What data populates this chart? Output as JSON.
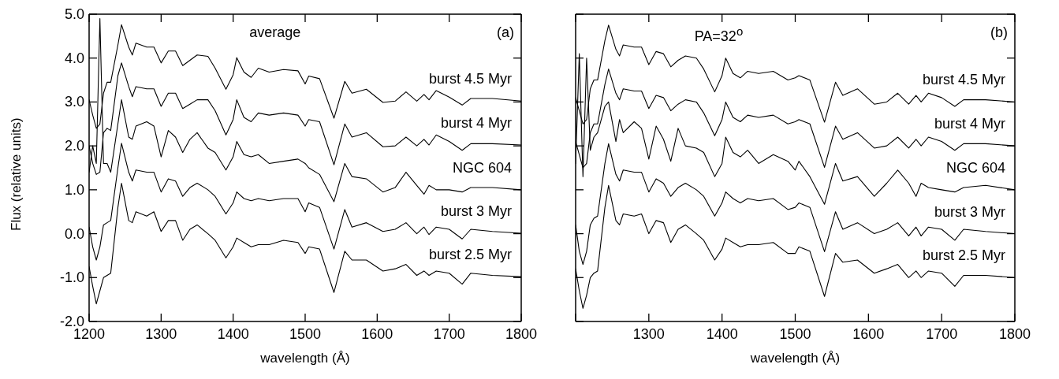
{
  "chart_data": [
    {
      "type": "line",
      "xlabel": "wavelength (Å)",
      "ylabel": "Flux (relative units)",
      "annotations": [
        "average",
        "(a)"
      ],
      "marker": "none",
      "legend": "right",
      "x": [
        1200,
        1205,
        1210,
        1215,
        1220,
        1225,
        1230,
        1240,
        1245,
        1255,
        1260,
        1265,
        1280,
        1290,
        1300,
        1310,
        1320,
        1330,
        1340,
        1350,
        1365,
        1375,
        1390,
        1400,
        1405,
        1415,
        1425,
        1435,
        1450,
        1470,
        1490,
        1500,
        1505,
        1520,
        1540,
        1555,
        1565,
        1585,
        1608,
        1625,
        1640,
        1655,
        1665,
        1672,
        1682,
        1700,
        1718,
        1730,
        1760,
        1800
      ],
      "xlim": [
        1200,
        1800
      ],
      "xticks": [
        1200,
        1300,
        1400,
        1500,
        1600,
        1700,
        1800
      ],
      "ylim": [
        -2,
        5
      ],
      "yticks": [
        {
          "value": -2,
          "label": "-2.0"
        },
        {
          "value": -1,
          "label": "-1.0"
        },
        {
          "value": 0,
          "label": "0.0"
        },
        {
          "value": 1,
          "label": "1.0"
        },
        {
          "value": 2,
          "label": "2.0"
        },
        {
          "value": 3,
          "label": "3.0"
        },
        {
          "value": 4,
          "label": "4.0"
        },
        {
          "value": 5,
          "label": "5.0"
        }
      ],
      "series": [
        {
          "name": "burst 4.5 Myr",
          "color": "#000000",
          "values": [
            3.05,
            2.7,
            2.4,
            2.5,
            3.2,
            3.45,
            3.45,
            4.3,
            4.76,
            4.25,
            4.07,
            4.34,
            4.25,
            4.25,
            3.89,
            4.16,
            4.16,
            3.83,
            3.95,
            4.07,
            4.04,
            3.77,
            3.29,
            3.62,
            4.01,
            3.68,
            3.56,
            3.77,
            3.68,
            3.74,
            3.71,
            3.41,
            3.59,
            3.53,
            2.63,
            3.47,
            3.2,
            3.29,
            2.99,
            3.02,
            3.23,
            3.02,
            3.17,
            3.05,
            3.26,
            3.11,
            2.93,
            3.08,
            3.08,
            3.02
          ]
        },
        {
          "name": "burst 4 Myr",
          "color": "#000000",
          "values": [
            2.0,
            1.6,
            1.35,
            1.4,
            2.3,
            2.4,
            2.35,
            3.6,
            3.89,
            3.35,
            3.12,
            3.35,
            3.3,
            3.3,
            2.9,
            3.2,
            3.2,
            2.85,
            2.95,
            3.05,
            3.05,
            2.8,
            2.25,
            2.6,
            3.05,
            2.65,
            2.55,
            2.75,
            2.7,
            2.75,
            2.7,
            2.45,
            2.6,
            2.55,
            1.57,
            2.5,
            2.2,
            2.3,
            1.98,
            2.0,
            2.2,
            2.0,
            2.15,
            2.02,
            2.25,
            2.1,
            1.9,
            2.05,
            2.05,
            2.02
          ]
        },
        {
          "name": "NGC 604",
          "color": "#000000",
          "values": [
            1.4,
            2.0,
            1.6,
            4.9,
            1.6,
            1.6,
            1.4,
            2.5,
            3.05,
            2.2,
            2.15,
            2.45,
            2.55,
            2.45,
            1.75,
            2.35,
            2.2,
            1.85,
            2.15,
            2.3,
            1.95,
            1.85,
            1.45,
            1.75,
            2.1,
            1.8,
            1.75,
            1.8,
            1.6,
            1.65,
            1.7,
            1.6,
            1.5,
            1.35,
            0.73,
            1.6,
            1.3,
            1.25,
            0.95,
            1.05,
            1.4,
            1.1,
            0.9,
            1.1,
            1.0,
            1.0,
            0.95,
            1.05,
            1.05,
            1.0
          ]
        },
        {
          "name": "burst 3 Myr",
          "color": "#000000",
          "values": [
            0.15,
            -0.3,
            -0.6,
            -0.3,
            0.2,
            0.25,
            0.3,
            1.5,
            2.06,
            1.4,
            1.2,
            1.45,
            1.4,
            1.4,
            0.95,
            1.25,
            1.2,
            0.85,
            1.05,
            1.15,
            1.0,
            0.85,
            0.45,
            0.7,
            0.95,
            0.8,
            0.75,
            0.8,
            0.75,
            0.8,
            0.8,
            0.5,
            0.7,
            0.6,
            -0.35,
            0.55,
            0.15,
            0.25,
            0.05,
            0.1,
            0.25,
            0.0,
            0.15,
            -0.02,
            0.15,
            0.1,
            -0.12,
            0.1,
            0.05,
            0.01
          ]
        },
        {
          "name": "burst 2.5 Myr",
          "color": "#000000",
          "values": [
            -0.75,
            -1.2,
            -1.6,
            -1.3,
            -1.0,
            -0.95,
            -0.9,
            0.6,
            1.15,
            0.3,
            0.25,
            0.5,
            0.4,
            0.5,
            0.05,
            0.3,
            0.3,
            -0.15,
            0.1,
            0.2,
            0.0,
            -0.15,
            -0.55,
            -0.3,
            -0.1,
            -0.2,
            -0.3,
            -0.25,
            -0.25,
            -0.15,
            -0.2,
            -0.45,
            -0.3,
            -0.35,
            -1.34,
            -0.4,
            -0.6,
            -0.6,
            -0.85,
            -0.8,
            -0.7,
            -0.95,
            -0.85,
            -0.95,
            -0.85,
            -0.9,
            -1.15,
            -0.9,
            -0.95,
            -0.98
          ]
        }
      ]
    },
    {
      "type": "line",
      "xlabel": "wavelength (Å)",
      "annotations": [
        "PA=32$^{o}$",
        "(b)"
      ],
      "marker": "none",
      "tick_labels": "x",
      "legend": "right",
      "x": [
        1200,
        1205,
        1210,
        1215,
        1220,
        1225,
        1230,
        1240,
        1245,
        1255,
        1260,
        1265,
        1280,
        1290,
        1300,
        1310,
        1320,
        1330,
        1340,
        1350,
        1365,
        1375,
        1390,
        1400,
        1405,
        1415,
        1425,
        1435,
        1450,
        1470,
        1490,
        1500,
        1505,
        1520,
        1540,
        1555,
        1565,
        1585,
        1608,
        1625,
        1640,
        1655,
        1665,
        1672,
        1682,
        1700,
        1718,
        1730,
        1760,
        1800
      ],
      "xlim": [
        1200,
        1800
      ],
      "xticks": [
        {
          "value": 1200,
          "label": null
        },
        1300,
        1400,
        1500,
        1600,
        1700,
        1800
      ],
      "ylim": [
        -2,
        5
      ],
      "yticks": [
        {
          "value": -2,
          "label": null
        },
        {
          "value": -1,
          "label": null
        },
        {
          "value": 0,
          "label": null
        },
        {
          "value": 1,
          "label": null
        },
        {
          "value": 2,
          "label": null
        },
        {
          "value": 3,
          "label": null
        },
        {
          "value": 4,
          "label": null
        },
        {
          "value": 5,
          "label": null
        }
      ],
      "series": [
        {
          "name": "burst 4.5 Myr",
          "color": "#000000",
          "values": [
            3.1,
            2.8,
            2.5,
            2.6,
            3.3,
            3.5,
            3.5,
            4.4,
            4.75,
            4.2,
            4.05,
            4.3,
            4.25,
            4.25,
            3.85,
            4.15,
            4.1,
            3.8,
            3.95,
            4.05,
            4.0,
            3.75,
            3.23,
            3.6,
            4.0,
            3.65,
            3.55,
            3.7,
            3.65,
            3.7,
            3.5,
            3.55,
            3.6,
            3.5,
            2.54,
            3.45,
            3.15,
            3.3,
            2.95,
            3.0,
            3.2,
            2.95,
            3.15,
            3.0,
            3.2,
            3.1,
            2.9,
            3.05,
            3.05,
            3.0
          ]
        },
        {
          "name": "burst 4 Myr",
          "color": "#000000",
          "values": [
            2.1,
            1.8,
            1.5,
            1.6,
            2.3,
            2.5,
            2.5,
            3.4,
            3.75,
            3.2,
            3.05,
            3.3,
            3.25,
            3.25,
            2.85,
            3.15,
            3.1,
            2.8,
            2.95,
            3.05,
            3.0,
            2.75,
            2.23,
            2.6,
            3.0,
            2.65,
            2.55,
            2.7,
            2.65,
            2.7,
            2.5,
            2.55,
            2.6,
            2.5,
            1.51,
            2.45,
            2.15,
            2.3,
            1.95,
            2.0,
            2.2,
            1.95,
            2.15,
            2.0,
            2.2,
            2.1,
            1.9,
            2.05,
            2.05,
            2.0
          ]
        },
        {
          "name": "NGC 604",
          "color": "#000000",
          "values": [
            1.6,
            4.1,
            1.3,
            4.0,
            1.9,
            2.2,
            2.3,
            2.9,
            3.0,
            2.1,
            2.6,
            2.3,
            2.55,
            2.4,
            1.7,
            2.45,
            2.15,
            1.65,
            2.4,
            2.0,
            1.95,
            1.85,
            1.3,
            1.6,
            2.2,
            1.85,
            1.75,
            1.9,
            1.6,
            1.8,
            1.65,
            1.45,
            1.65,
            1.3,
            0.67,
            1.6,
            1.2,
            1.3,
            0.85,
            1.15,
            1.45,
            1.15,
            0.85,
            1.15,
            1.05,
            1.0,
            0.95,
            1.05,
            1.1,
            1.0
          ]
        },
        {
          "name": "burst 3 Myr",
          "color": "#000000",
          "values": [
            0.2,
            -0.4,
            -0.7,
            -0.4,
            0.2,
            0.35,
            0.4,
            1.6,
            2.05,
            1.35,
            1.2,
            1.45,
            1.4,
            1.4,
            0.95,
            1.25,
            1.15,
            0.85,
            1.05,
            1.15,
            1.0,
            0.85,
            0.4,
            0.7,
            0.95,
            0.8,
            0.7,
            0.8,
            0.75,
            0.8,
            0.55,
            0.6,
            0.7,
            0.6,
            -0.41,
            0.5,
            0.1,
            0.25,
            0.0,
            0.1,
            0.25,
            -0.05,
            0.15,
            -0.05,
            0.15,
            0.1,
            -0.15,
            0.1,
            0.05,
            0.0
          ]
        },
        {
          "name": "burst 2.5 Myr",
          "color": "#000000",
          "values": [
            -0.8,
            -1.3,
            -1.7,
            -1.4,
            -1.0,
            -0.9,
            -0.85,
            0.6,
            1.1,
            0.3,
            0.2,
            0.45,
            0.4,
            0.45,
            0.0,
            0.3,
            0.25,
            -0.2,
            0.1,
            0.2,
            0.0,
            -0.15,
            -0.6,
            -0.35,
            -0.1,
            -0.2,
            -0.3,
            -0.25,
            -0.25,
            -0.2,
            -0.45,
            -0.45,
            -0.3,
            -0.4,
            -1.43,
            -0.45,
            -0.65,
            -0.6,
            -0.9,
            -0.8,
            -0.7,
            -1.0,
            -0.85,
            -1.0,
            -0.85,
            -0.9,
            -1.2,
            -0.95,
            -0.95,
            -1.0
          ]
        }
      ]
    }
  ]
}
